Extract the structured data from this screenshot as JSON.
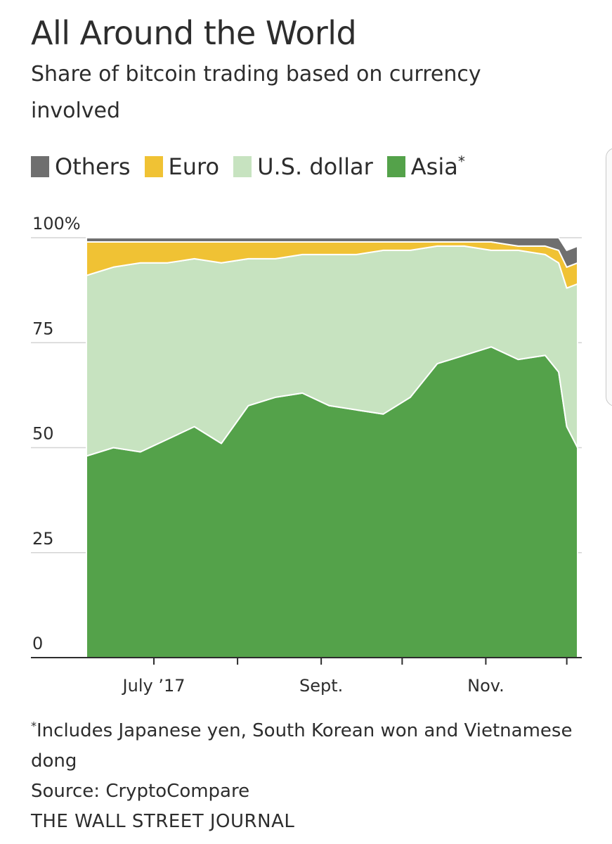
{
  "chart_data": {
    "type": "area",
    "stacked": true,
    "title": "All Around the World",
    "subtitle": "Share of bitcoin trading based on currency involved",
    "ylim": [
      0,
      100
    ],
    "yticks": [
      {
        "value": 0,
        "label": "0"
      },
      {
        "value": 25,
        "label": "25"
      },
      {
        "value": 50,
        "label": "50"
      },
      {
        "value": 75,
        "label": "75"
      },
      {
        "value": 100,
        "label": "100%"
      }
    ],
    "xlim": [
      "2017-06-06",
      "2017-12-05"
    ],
    "xtick_marks": [
      "2017-07-01",
      "2017-08-01",
      "2017-09-01",
      "2017-10-01",
      "2017-11-01",
      "2017-12-01"
    ],
    "xtick_labels": [
      {
        "date": "2017-07-01",
        "label": "July ’17"
      },
      {
        "date": "2017-09-01",
        "label": "Sept."
      },
      {
        "date": "2017-11-01",
        "label": "Nov."
      }
    ],
    "x": [
      "2017-06-06",
      "2017-06-16",
      "2017-06-26",
      "2017-07-06",
      "2017-07-16",
      "2017-07-26",
      "2017-08-05",
      "2017-08-15",
      "2017-08-25",
      "2017-09-04",
      "2017-09-14",
      "2017-09-24",
      "2017-10-04",
      "2017-10-14",
      "2017-10-24",
      "2017-11-03",
      "2017-11-13",
      "2017-11-23",
      "2017-11-28",
      "2017-12-01",
      "2017-12-05"
    ],
    "series": [
      {
        "name": "Asia",
        "footnote_marker": "*",
        "color": "#54a24a",
        "values": [
          48,
          50,
          49,
          52,
          55,
          51,
          60,
          62,
          63,
          60,
          59,
          58,
          62,
          70,
          72,
          74,
          71,
          72,
          68,
          55,
          50
        ]
      },
      {
        "name": "U.S. dollar",
        "color": "#c7e3c0",
        "values": [
          43,
          43,
          45,
          42,
          40,
          43,
          35,
          33,
          33,
          36,
          37,
          39,
          35,
          28,
          26,
          23,
          26,
          24,
          26,
          33,
          39
        ]
      },
      {
        "name": "Euro",
        "color": "#f0c234",
        "values": [
          8,
          6,
          5,
          5,
          4,
          5,
          4,
          4,
          3,
          3,
          3,
          2,
          2,
          1,
          1,
          2,
          1,
          2,
          3,
          5,
          5
        ]
      },
      {
        "name": "Others",
        "color": "#6f6f6f",
        "values": [
          1,
          1,
          1,
          1,
          1,
          1,
          1,
          1,
          1,
          1,
          1,
          1,
          1,
          1,
          1,
          1,
          2,
          2,
          3,
          4,
          4
        ]
      }
    ],
    "legend_order": [
      "Others",
      "Euro",
      "U.S. dollar",
      "Asia"
    ],
    "legend_placement": "top-left",
    "grid": true
  },
  "footnote": {
    "marker": "*",
    "text": "Includes Japanese yen, South Korean won and Vietnamese dong"
  },
  "source": "Source: CryptoCompare",
  "publisher": "THE WALL STREET JOURNAL"
}
